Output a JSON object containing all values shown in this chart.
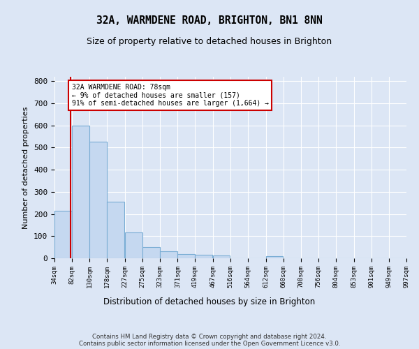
{
  "title": "32A, WARMDENE ROAD, BRIGHTON, BN1 8NN",
  "subtitle": "Size of property relative to detached houses in Brighton",
  "xlabel": "Distribution of detached houses by size in Brighton",
  "ylabel": "Number of detached properties",
  "bar_color": "#c5d8f0",
  "bar_edge_color": "#7aadd4",
  "bins": [
    34,
    82,
    130,
    178,
    227,
    275,
    323,
    371,
    419,
    467,
    516,
    564,
    612,
    660,
    708,
    756,
    804,
    853,
    901,
    949,
    997
  ],
  "values": [
    215,
    600,
    527,
    255,
    118,
    52,
    32,
    20,
    17,
    12,
    0,
    0,
    10,
    0,
    0,
    0,
    0,
    0,
    0,
    0
  ],
  "tick_labels": [
    "34sqm",
    "82sqm",
    "130sqm",
    "178sqm",
    "227sqm",
    "275sqm",
    "323sqm",
    "371sqm",
    "419sqm",
    "467sqm",
    "516sqm",
    "564sqm",
    "612sqm",
    "660sqm",
    "708sqm",
    "756sqm",
    "804sqm",
    "853sqm",
    "901sqm",
    "949sqm",
    "997sqm"
  ],
  "ylim": [
    0,
    820
  ],
  "annotation_text": "32A WARMDENE ROAD: 78sqm\n← 9% of detached houses are smaller (157)\n91% of semi-detached houses are larger (1,664) →",
  "annotation_box_color": "#ffffff",
  "annotation_box_edge": "#cc0000",
  "bg_color": "#dce6f5",
  "axes_bg_color": "#dce6f5",
  "grid_color": "#ffffff",
  "footer_text": "Contains HM Land Registry data © Crown copyright and database right 2024.\nContains public sector information licensed under the Open Government Licence v3.0.",
  "red_line_color": "#cc0000",
  "yticks": [
    0,
    100,
    200,
    300,
    400,
    500,
    600,
    700,
    800
  ]
}
